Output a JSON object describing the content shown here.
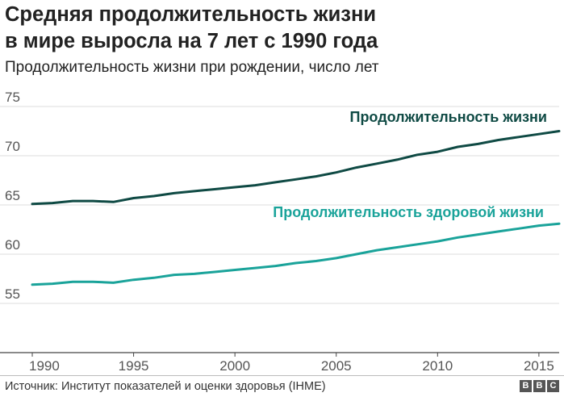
{
  "header": {
    "title_line1": "Средняя продолжительность жизни",
    "title_line2": "в мире выросла на 7 лет с 1990 года",
    "subtitle": "Продолжительность жизни при рождении, число лет"
  },
  "footer": {
    "source": "Источник: Институт показателей и оценки здоровья (IHME)",
    "logo": [
      "B",
      "B",
      "C"
    ]
  },
  "colors": {
    "life_expectancy": "#0f4a44",
    "healthy_life_expectancy": "#1aa39a",
    "grid": "#dcdcdc"
  },
  "chart_data": {
    "type": "line",
    "x": [
      1990,
      1991,
      1992,
      1993,
      1994,
      1995,
      1996,
      1997,
      1998,
      1999,
      2000,
      2001,
      2002,
      2003,
      2004,
      2005,
      2006,
      2007,
      2008,
      2009,
      2010,
      2011,
      2012,
      2013,
      2014,
      2015,
      2016
    ],
    "series": [
      {
        "name": "Продолжительность жизни",
        "color": "#0f4a44",
        "values": [
          65.1,
          65.2,
          65.4,
          65.4,
          65.3,
          65.7,
          65.9,
          66.2,
          66.4,
          66.6,
          66.8,
          67.0,
          67.3,
          67.6,
          67.9,
          68.3,
          68.8,
          69.2,
          69.6,
          70.1,
          70.4,
          70.9,
          71.2,
          71.6,
          71.9,
          72.2,
          72.5
        ]
      },
      {
        "name": "Продолжительность здоровой жизни",
        "color": "#1aa39a",
        "values": [
          56.9,
          57.0,
          57.2,
          57.2,
          57.1,
          57.4,
          57.6,
          57.9,
          58.0,
          58.2,
          58.4,
          58.6,
          58.8,
          59.1,
          59.3,
          59.6,
          60.0,
          60.4,
          60.7,
          61.0,
          61.3,
          61.7,
          62.0,
          62.3,
          62.6,
          62.9,
          63.1
        ]
      }
    ],
    "ylim": [
      50,
      75
    ],
    "xlim": [
      1990,
      2016
    ],
    "yticks": [
      55,
      60,
      65,
      70,
      75
    ],
    "xticks": [
      1990,
      1995,
      2000,
      2005,
      2010,
      2015
    ],
    "grid": true,
    "xlabel": "",
    "ylabel": ""
  }
}
